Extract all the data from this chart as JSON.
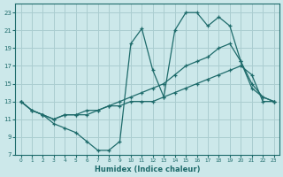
{
  "xlabel": "Humidex (Indice chaleur)",
  "bg_color": "#cce8ea",
  "grid_color": "#aacdd0",
  "line_color": "#1e6b6b",
  "xlim": [
    -0.5,
    23.5
  ],
  "ylim": [
    7,
    24
  ],
  "xticks": [
    0,
    1,
    2,
    3,
    4,
    5,
    6,
    7,
    8,
    9,
    10,
    11,
    12,
    13,
    14,
    15,
    16,
    17,
    18,
    19,
    20,
    21,
    22,
    23
  ],
  "yticks": [
    7,
    9,
    11,
    13,
    15,
    17,
    19,
    21,
    23
  ],
  "line1_x": [
    0,
    1,
    2,
    3,
    4,
    5,
    6,
    7,
    8,
    9,
    10,
    11,
    12,
    13,
    14,
    15,
    16,
    17,
    18,
    19,
    20,
    21,
    22,
    23
  ],
  "line1_y": [
    13,
    12,
    11.5,
    10.5,
    10,
    9.5,
    8.5,
    7.5,
    7.5,
    8.5,
    19.5,
    21.2,
    16.5,
    13.5,
    21,
    23,
    23,
    21.5,
    22.5,
    21.5,
    17.5,
    15,
    13.5,
    13
  ],
  "line2_x": [
    0,
    1,
    2,
    3,
    4,
    5,
    6,
    7,
    8,
    9,
    10,
    11,
    12,
    13,
    14,
    15,
    16,
    17,
    18,
    19,
    20,
    21,
    22,
    23
  ],
  "line2_y": [
    13,
    12,
    11.5,
    11,
    11.5,
    11.5,
    12,
    12,
    12.5,
    13,
    13.5,
    14,
    14.5,
    15,
    16,
    17,
    17.5,
    18,
    19,
    19.5,
    17.5,
    14.5,
    13.5,
    13
  ],
  "line3_x": [
    0,
    1,
    2,
    3,
    4,
    5,
    6,
    7,
    8,
    9,
    10,
    11,
    12,
    13,
    14,
    15,
    16,
    17,
    18,
    19,
    20,
    21,
    22,
    23
  ],
  "line3_y": [
    13,
    12,
    11.5,
    11,
    11.5,
    11.5,
    11.5,
    12,
    12.5,
    12.5,
    13,
    13,
    13,
    13.5,
    14,
    14.5,
    15,
    15.5,
    16,
    16.5,
    17,
    16,
    13,
    13
  ]
}
